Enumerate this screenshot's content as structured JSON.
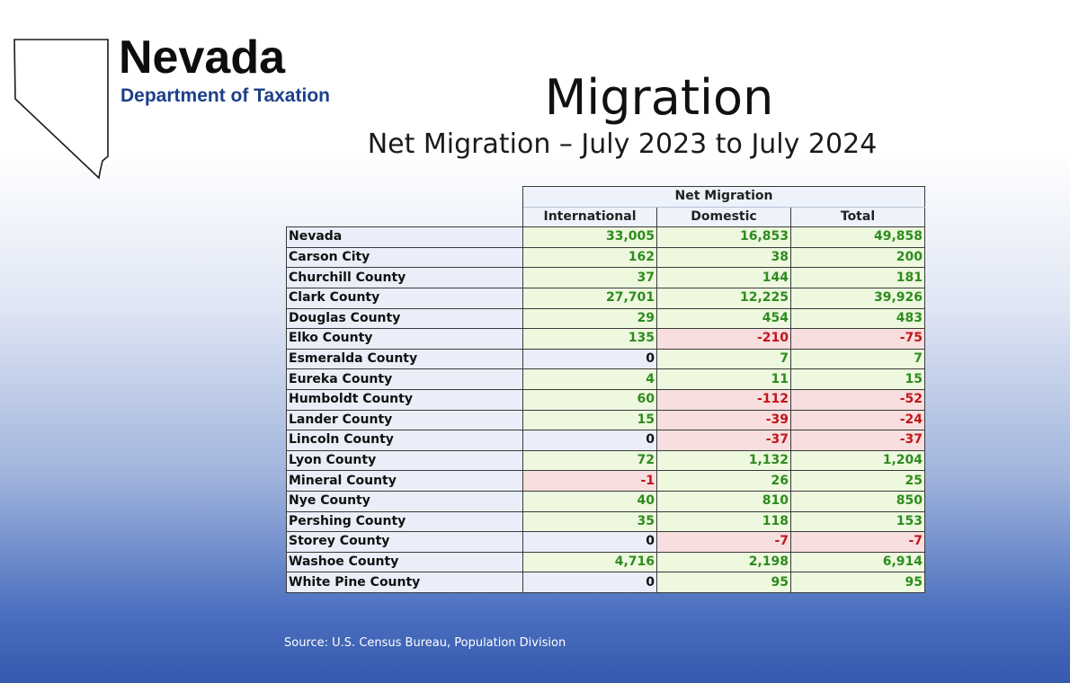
{
  "brand": {
    "name": "Nevada",
    "subtitle": "Department of Taxation"
  },
  "title": "Migration",
  "subtitle": "Net Migration – July 2023 to July 2024",
  "table": {
    "group_header": "Net Migration",
    "columns": [
      "International",
      "Domestic",
      "Total"
    ],
    "rows": [
      {
        "name": "Nevada",
        "values": [
          "33,005",
          "16,853",
          "49,858"
        ]
      },
      {
        "name": "Carson City",
        "values": [
          "162",
          "38",
          "200"
        ]
      },
      {
        "name": "Churchill County",
        "values": [
          "37",
          "144",
          "181"
        ]
      },
      {
        "name": "Clark County",
        "values": [
          "27,701",
          "12,225",
          "39,926"
        ]
      },
      {
        "name": "Douglas County",
        "values": [
          "29",
          "454",
          "483"
        ]
      },
      {
        "name": "Elko County",
        "values": [
          "135",
          "-210",
          "-75"
        ]
      },
      {
        "name": "Esmeralda County",
        "values": [
          "0",
          "7",
          "7"
        ]
      },
      {
        "name": "Eureka County",
        "values": [
          "4",
          "11",
          "15"
        ]
      },
      {
        "name": "Humboldt County",
        "values": [
          "60",
          "-112",
          "-52"
        ]
      },
      {
        "name": "Lander County",
        "values": [
          "15",
          "-39",
          "-24"
        ]
      },
      {
        "name": "Lincoln County",
        "values": [
          "0",
          "-37",
          "-37"
        ]
      },
      {
        "name": "Lyon County",
        "values": [
          "72",
          "1,132",
          "1,204"
        ]
      },
      {
        "name": "Mineral County",
        "values": [
          "-1",
          "26",
          "25"
        ]
      },
      {
        "name": "Nye County",
        "values": [
          "40",
          "810",
          "850"
        ]
      },
      {
        "name": "Pershing County",
        "values": [
          "35",
          "118",
          "153"
        ]
      },
      {
        "name": "Storey County",
        "values": [
          "0",
          "-7",
          "-7"
        ]
      },
      {
        "name": "Washoe County",
        "values": [
          "4,716",
          "2,198",
          "6,914"
        ]
      },
      {
        "name": "White Pine County",
        "values": [
          "0",
          "95",
          "95"
        ]
      }
    ]
  },
  "source": "Source: U.S. Census Bureau, Population Division",
  "colors": {
    "positive": "#2e8b1e",
    "negative": "#c0161c",
    "brand_blue": "#1c3f8a"
  }
}
